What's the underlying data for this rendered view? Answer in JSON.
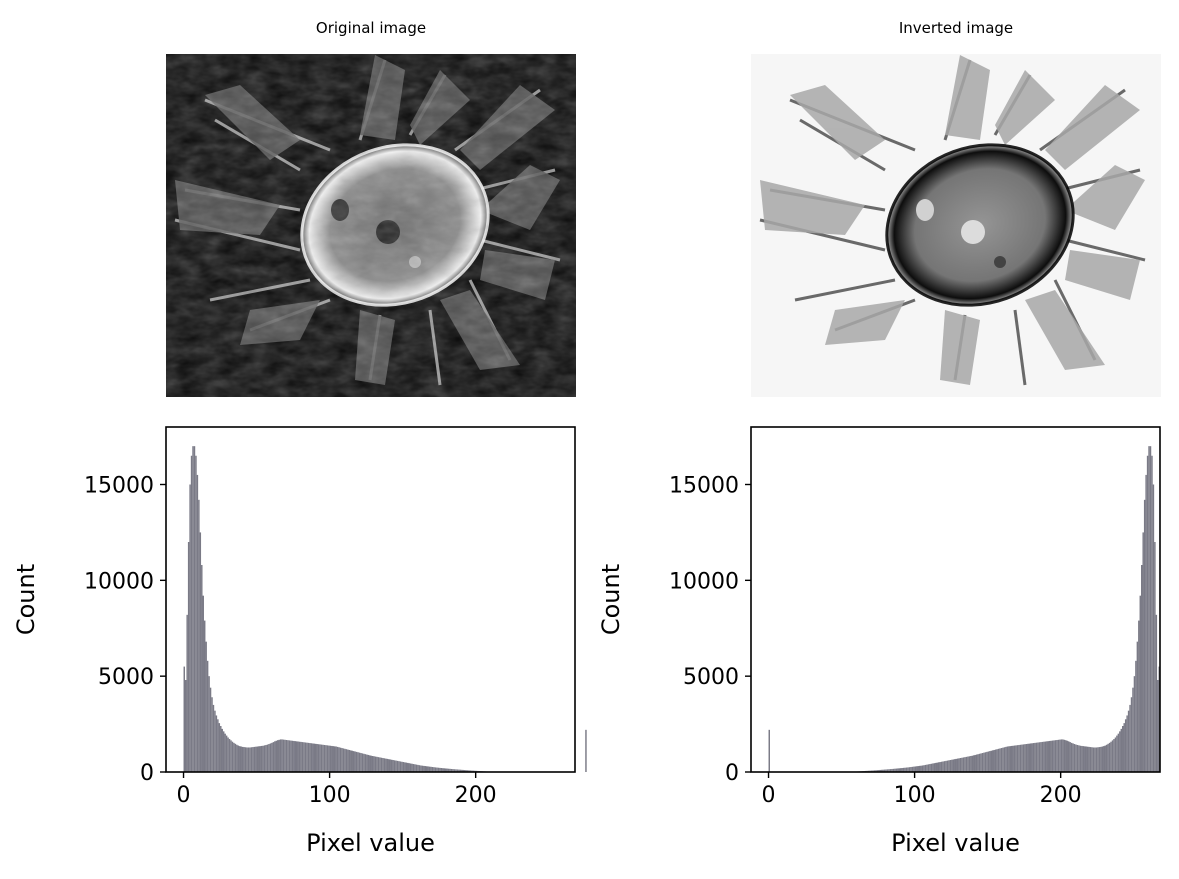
{
  "panels": {
    "left_title": "Original image",
    "right_title": "Inverted image"
  },
  "colors": {
    "histogram_fill": "#7a7a86",
    "axes": "#000000",
    "background": "#ffffff"
  },
  "chart_data": [
    {
      "type": "bar",
      "subtype": "histogram",
      "title": "",
      "xlabel": "Pixel value",
      "ylabel": "Count",
      "xlim": [
        -12,
        268
      ],
      "ylim": [
        0,
        18000
      ],
      "xticks": [
        0,
        100,
        200
      ],
      "yticks": [
        0,
        5000,
        10000,
        15000
      ],
      "bins": 256,
      "x_start": 0,
      "values": [
        5500,
        4800,
        8200,
        12000,
        15000,
        16500,
        17000,
        17000,
        16500,
        15500,
        14200,
        12500,
        10800,
        9200,
        7900,
        6800,
        5800,
        5000,
        4400,
        3900,
        3500,
        3200,
        2950,
        2750,
        2550,
        2400,
        2250,
        2120,
        2000,
        1900,
        1800,
        1720,
        1650,
        1580,
        1520,
        1470,
        1420,
        1380,
        1350,
        1330,
        1310,
        1300,
        1290,
        1280,
        1280,
        1280,
        1290,
        1300,
        1310,
        1320,
        1330,
        1340,
        1350,
        1360,
        1370,
        1390,
        1410,
        1430,
        1460,
        1490,
        1520,
        1560,
        1600,
        1630,
        1660,
        1680,
        1700,
        1700,
        1690,
        1680,
        1670,
        1660,
        1650,
        1640,
        1630,
        1620,
        1610,
        1600,
        1590,
        1580,
        1570,
        1560,
        1550,
        1540,
        1530,
        1520,
        1510,
        1500,
        1490,
        1480,
        1470,
        1460,
        1450,
        1440,
        1430,
        1420,
        1410,
        1400,
        1390,
        1380,
        1370,
        1360,
        1350,
        1340,
        1330,
        1310,
        1290,
        1270,
        1250,
        1230,
        1210,
        1190,
        1170,
        1150,
        1130,
        1110,
        1090,
        1070,
        1050,
        1030,
        1010,
        990,
        970,
        950,
        930,
        910,
        890,
        870,
        850,
        835,
        820,
        805,
        790,
        775,
        760,
        745,
        730,
        715,
        700,
        685,
        670,
        655,
        640,
        625,
        610,
        595,
        580,
        565,
        550,
        535,
        520,
        505,
        490,
        475,
        460,
        445,
        430,
        415,
        400,
        385,
        370,
        355,
        340,
        330,
        320,
        310,
        300,
        290,
        280,
        270,
        260,
        250,
        240,
        232,
        224,
        216,
        208,
        200,
        193,
        186,
        179,
        172,
        165,
        158,
        151,
        144,
        138,
        132,
        126,
        120,
        114,
        108,
        102,
        96,
        91,
        86,
        81,
        76,
        71,
        66,
        61,
        56,
        51,
        46,
        41,
        36,
        32,
        28,
        24,
        20,
        16,
        12,
        8,
        4,
        0,
        0,
        0,
        0,
        0,
        0,
        0,
        0,
        0,
        0,
        0,
        0,
        0,
        0,
        0,
        0,
        0,
        0,
        0,
        0,
        0,
        0,
        0,
        0,
        0,
        0,
        0,
        0,
        0,
        0,
        0,
        0,
        0,
        0,
        0,
        0,
        0,
        0,
        0,
        0,
        0,
        0,
        0,
        0,
        0,
        0,
        0,
        0,
        0,
        0,
        0,
        0,
        0,
        0,
        0,
        0,
        0,
        0,
        0,
        0,
        0,
        2200
      ]
    },
    {
      "type": "bar",
      "subtype": "histogram",
      "title": "",
      "xlabel": "Pixel value",
      "ylabel": "Count",
      "xlim": [
        -12,
        268
      ],
      "ylim": [
        0,
        18000
      ],
      "xticks": [
        0,
        100,
        200
      ],
      "yticks": [
        0,
        5000,
        10000,
        15000
      ],
      "bins": 256,
      "x_start": 0,
      "values": [
        2200,
        0,
        0,
        0,
        0,
        0,
        0,
        0,
        0,
        0,
        0,
        0,
        0,
        0,
        0,
        0,
        0,
        0,
        0,
        0,
        0,
        0,
        0,
        0,
        0,
        0,
        0,
        0,
        0,
        0,
        0,
        0,
        0,
        0,
        0,
        0,
        0,
        0,
        0,
        0,
        0,
        0,
        0,
        0,
        0,
        0,
        0,
        0,
        0,
        0,
        0,
        0,
        0,
        0,
        4,
        8,
        12,
        16,
        20,
        24,
        28,
        32,
        36,
        41,
        46,
        51,
        56,
        61,
        66,
        71,
        76,
        81,
        86,
        91,
        96,
        102,
        108,
        114,
        120,
        126,
        132,
        138,
        144,
        151,
        158,
        165,
        172,
        179,
        186,
        193,
        200,
        208,
        216,
        224,
        232,
        240,
        250,
        260,
        270,
        280,
        290,
        300,
        310,
        320,
        330,
        340,
        355,
        370,
        385,
        400,
        415,
        430,
        445,
        460,
        475,
        490,
        505,
        520,
        535,
        550,
        565,
        580,
        595,
        610,
        625,
        640,
        655,
        670,
        685,
        700,
        715,
        730,
        745,
        760,
        775,
        790,
        805,
        820,
        835,
        850,
        870,
        890,
        910,
        930,
        950,
        970,
        990,
        1010,
        1030,
        1050,
        1070,
        1090,
        1110,
        1130,
        1150,
        1170,
        1190,
        1210,
        1230,
        1250,
        1270,
        1290,
        1310,
        1330,
        1340,
        1350,
        1360,
        1370,
        1380,
        1390,
        1400,
        1410,
        1420,
        1430,
        1440,
        1450,
        1460,
        1470,
        1480,
        1490,
        1500,
        1510,
        1520,
        1530,
        1540,
        1550,
        1560,
        1570,
        1580,
        1590,
        1600,
        1610,
        1620,
        1630,
        1640,
        1650,
        1660,
        1670,
        1680,
        1690,
        1700,
        1700,
        1680,
        1660,
        1630,
        1600,
        1560,
        1520,
        1490,
        1460,
        1430,
        1410,
        1390,
        1370,
        1360,
        1350,
        1340,
        1330,
        1320,
        1310,
        1300,
        1290,
        1280,
        1280,
        1280,
        1290,
        1300,
        1310,
        1330,
        1350,
        1380,
        1420,
        1470,
        1520,
        1580,
        1650,
        1720,
        1800,
        1900,
        2000,
        2120,
        2250,
        2400,
        2550,
        2750,
        2950,
        3200,
        3500,
        3900,
        4400,
        5000,
        5800,
        6800,
        7900,
        9200,
        10800,
        12500,
        14200,
        15500,
        16500,
        17000,
        17000,
        16500,
        15000,
        12000,
        8200,
        4800,
        5500
      ]
    }
  ]
}
